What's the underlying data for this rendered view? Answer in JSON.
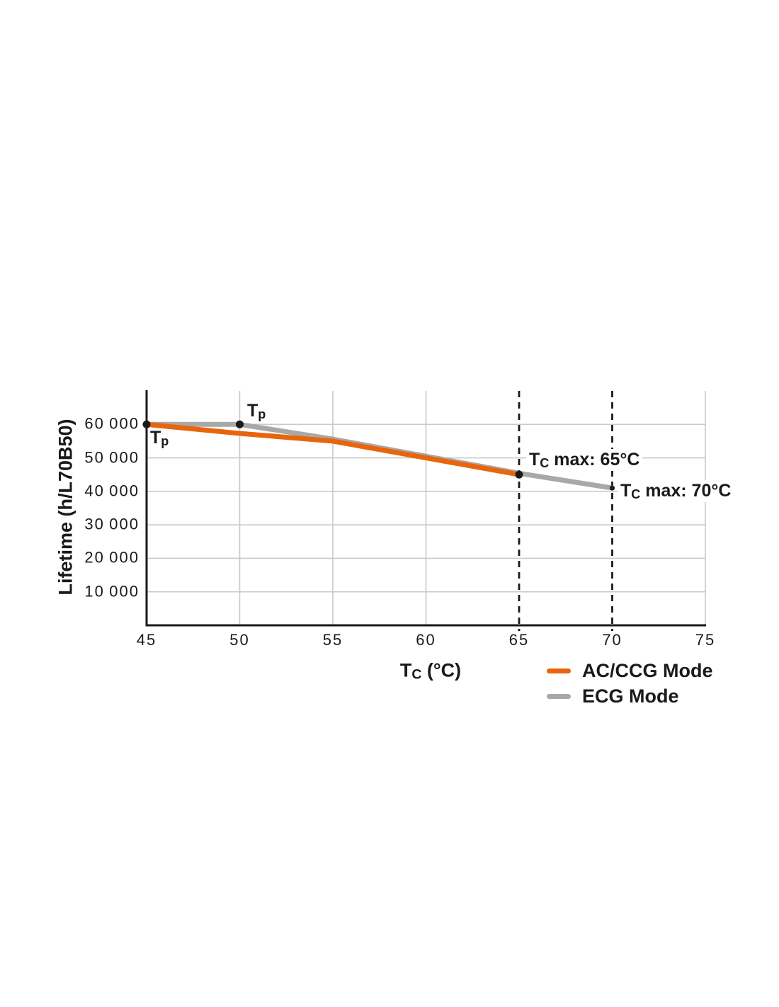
{
  "colors": {
    "background": "#FFFFFF",
    "axis": "#1A1A1A",
    "grid": "#C9C9C9",
    "text": "#1A1A1A",
    "accent_orange": "#E8650D",
    "line_gray": "#A8A8A8",
    "marker": "#1A1A1A"
  },
  "chart_data": {
    "type": "line",
    "title": "",
    "ylabel": "Lifetime (h/L70B50)",
    "xlabel": {
      "main": "T",
      "sub": "C",
      "rest": " (°C)"
    },
    "xlim": [
      45,
      75
    ],
    "ylim": [
      0,
      70000
    ],
    "xticks": [
      "45",
      "50",
      "55",
      "60",
      "65",
      "70",
      "75"
    ],
    "xtick_values": [
      45,
      50,
      55,
      60,
      65,
      70,
      75
    ],
    "ytick_labels": [
      "10 000",
      "20 000",
      "30 000",
      "40 000",
      "50 000",
      "60 000"
    ],
    "ytick_values": [
      10000,
      20000,
      30000,
      40000,
      50000,
      60000
    ],
    "grid": {
      "vertical_solid_x": [
        50,
        55,
        60,
        75
      ],
      "horizontal_y": [
        10000,
        20000,
        30000,
        40000,
        50000,
        60000
      ]
    },
    "dashed_lines_x": [
      65,
      70
    ],
    "series": [
      {
        "name": "AC/CCG Mode",
        "color": "#E8650D",
        "x": [
          45,
          50,
          55,
          60,
          65
        ],
        "y": [
          60000,
          57300,
          55000,
          50000,
          45000
        ]
      },
      {
        "name": "ECG Mode",
        "color": "#A8A8A8",
        "x": [
          45,
          50,
          55,
          60,
          65,
          70
        ],
        "y": [
          60000,
          60000,
          55600,
          50500,
          45400,
          41000
        ]
      }
    ],
    "markers": [
      {
        "x": 45,
        "y": 60000,
        "r": 5.5
      },
      {
        "x": 50,
        "y": 60000,
        "r": 5.5
      },
      {
        "x": 65,
        "y": 45000,
        "r": 5.5
      },
      {
        "x": 70,
        "y": 41000,
        "r": 3.5
      }
    ],
    "annotations": {
      "tp_left": {
        "main": "T",
        "sub": "p",
        "rest": ""
      },
      "tp_mid": {
        "main": "T",
        "sub": "p",
        "rest": ""
      },
      "tc_max_65": {
        "main": "T",
        "sub": "C",
        "rest": " max: 65°C"
      },
      "tc_max_70": {
        "main": "T",
        "sub": "C",
        "rest": " max: 70°C"
      }
    },
    "legend": [
      {
        "label": "AC/CCG Mode",
        "color": "#E8650D"
      },
      {
        "label": "ECG Mode",
        "color": "#A8A8A8"
      }
    ],
    "legend_position": "bottom-right",
    "grid_on": true
  }
}
